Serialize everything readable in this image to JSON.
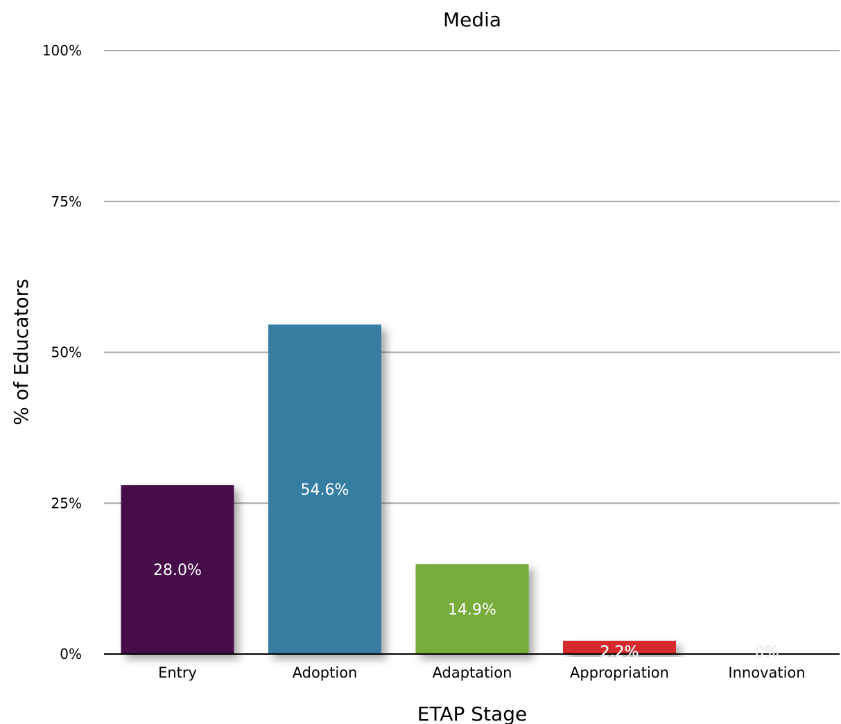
{
  "chart_data": {
    "type": "bar",
    "title": "Media",
    "xlabel": "ETAP Stage",
    "ylabel": "% of Educators",
    "categories": [
      "Entry",
      "Adoption",
      "Adaptation",
      "Appropriation",
      "Innovation"
    ],
    "values": [
      28.0,
      54.6,
      14.9,
      2.2,
      0
    ],
    "value_labels": [
      "28.0%",
      "54.6%",
      "14.9%",
      "2.2%",
      "0%"
    ],
    "colors": [
      "#470d48",
      "#357ea2",
      "#78ac3c",
      "#d42a2d",
      "#d8d8d8"
    ],
    "ylim": [
      0,
      100
    ],
    "yticks": [
      0,
      25,
      50,
      75,
      100
    ],
    "ytick_labels": [
      "0%",
      "25%",
      "50%",
      "75%",
      "100%"
    ],
    "grid": true,
    "legend": "none"
  }
}
